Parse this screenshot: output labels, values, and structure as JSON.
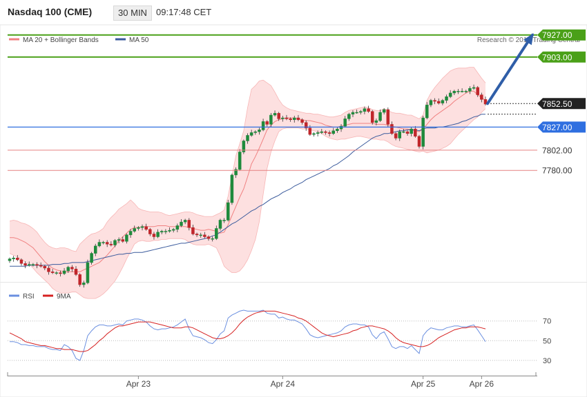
{
  "header": {
    "instrument": "Nasdaq 100 (CME)",
    "interval": "30 MIN",
    "time": "09:17:48 CET"
  },
  "legend": {
    "ma20_label": "MA 20 + Bollinger Bands",
    "ma50_label": "MA 50",
    "copyright": "Research © 2019 Trading Central"
  },
  "rsi_legend": {
    "rsi_label": "RSI",
    "ma_label": "9MA"
  },
  "colors": {
    "ma20": "#f08080",
    "bollinger_fill": "#fde0e0",
    "ma50": "#3a5a9c",
    "bullish": "#1f8a3c",
    "bearish": "#c0262b",
    "green_level": "#4aa018",
    "blue_level": "#2f6fe0",
    "red_level": "#e58080",
    "arrow": "#2f5ea8",
    "rsi": "#6a8fe0",
    "rsi_ma": "#d62020"
  },
  "chart_data": [
    {
      "type": "candlestick",
      "x_labels": [
        "Apr 23",
        "Apr 24",
        "Apr 25",
        "Apr 26"
      ],
      "levels": [
        {
          "value": 7927.0,
          "label": "7927.00",
          "style": "green-line-tag"
        },
        {
          "value": 7903.0,
          "label": "7903.00",
          "style": "green-line-tag"
        },
        {
          "value": 7852.5,
          "label": "7852.50",
          "style": "current-price-tag"
        },
        {
          "value": 7827.0,
          "label": "7827.00",
          "style": "blue-line-tag"
        },
        {
          "value": 7802.0,
          "label": "7802.00",
          "style": "red-line"
        },
        {
          "value": 7780.0,
          "label": "7780.00",
          "style": "red-line"
        }
      ],
      "y_range": [
        7662,
        7935
      ],
      "close": [
        7684,
        7685,
        7683,
        7679,
        7677,
        7678,
        7678,
        7677,
        7676,
        7674,
        7670,
        7669,
        7669,
        7668,
        7671,
        7675,
        7673,
        7667,
        7656,
        7658,
        7680,
        7690,
        7698,
        7702,
        7702,
        7700,
        7699,
        7704,
        7705,
        7703,
        7710,
        7714,
        7717,
        7718,
        7719,
        7716,
        7711,
        7708,
        7713,
        7714,
        7714,
        7715,
        7716,
        7720,
        7724,
        7726,
        7718,
        7711,
        7710,
        7710,
        7708,
        7706,
        7706,
        7717,
        7726,
        7726,
        7745,
        7775,
        7781,
        7800,
        7812,
        7818,
        7821,
        7822,
        7824,
        7833,
        7830,
        7840,
        7842,
        7836,
        7837,
        7836,
        7835,
        7837,
        7835,
        7832,
        7826,
        7819,
        7820,
        7821,
        7822,
        7821,
        7820,
        7823,
        7825,
        7828,
        7836,
        7841,
        7843,
        7843,
        7844,
        7847,
        7844,
        7832,
        7834,
        7843,
        7846,
        7830,
        7820,
        7815,
        7822,
        7822,
        7820,
        7825,
        7817,
        7806,
        7837,
        7851,
        7856,
        7855,
        7853,
        7856,
        7860,
        7864,
        7866,
        7866,
        7866,
        7866,
        7869,
        7870,
        7862,
        7857,
        7852
      ],
      "bollinger_upper": [
        7725,
        7726,
        7725,
        7723,
        7722,
        7720,
        7717,
        7713,
        7707,
        7702,
        7698,
        7696,
        7695,
        7696,
        7696,
        7695,
        7693,
        7692,
        7700,
        7704,
        7708,
        7711,
        7712,
        7714,
        7717,
        7724,
        7729,
        7733,
        7738,
        7741,
        7744,
        7748,
        7744,
        7739,
        7737,
        7736,
        7735,
        7735,
        7735,
        7734,
        7732,
        7731,
        7732,
        7733,
        7734,
        7735,
        7735,
        7734,
        7732,
        7731,
        7730,
        7730,
        7730,
        7732,
        7734,
        7737,
        7752,
        7774,
        7796,
        7809,
        7823,
        7848,
        7868,
        7872,
        7877,
        7878,
        7875,
        7872,
        7865,
        7857,
        7851,
        7848,
        7846,
        7845,
        7844,
        7843,
        7842,
        7842,
        7841,
        7841,
        7840,
        7839,
        7838,
        7838,
        7839,
        7840,
        7843,
        7845,
        7846,
        7847,
        7848,
        7849,
        7848,
        7846,
        7845,
        7845,
        7847,
        7845,
        7843,
        7842,
        7842,
        7841,
        7840,
        7840,
        7838,
        7836,
        7840,
        7856,
        7864,
        7870,
        7875,
        7880,
        7884,
        7888,
        7890,
        7891,
        7891,
        7891,
        7892,
        7892,
        7886,
        7880,
        7875
      ],
      "bollinger_lower": [
        7690,
        7688,
        7686,
        7683,
        7681,
        7678,
        7674,
        7669,
        7665,
        7661,
        7657,
        7652,
        7649,
        7647,
        7647,
        7647,
        7648,
        7648,
        7645,
        7642,
        7641,
        7641,
        7641,
        7643,
        7646,
        7650,
        7655,
        7660,
        7667,
        7675,
        7684,
        7692,
        7700,
        7703,
        7704,
        7703,
        7703,
        7704,
        7704,
        7705,
        7705,
        7706,
        7706,
        7706,
        7706,
        7705,
        7702,
        7700,
        7699,
        7699,
        7699,
        7700,
        7698,
        7696,
        7687,
        7676,
        7672,
        7669,
        7669,
        7671,
        7676,
        7683,
        7693,
        7705,
        7724,
        7754,
        7782,
        7800,
        7812,
        7822,
        7825,
        7826,
        7826,
        7826,
        7826,
        7825,
        7825,
        7824,
        7823,
        7822,
        7820,
        7817,
        7815,
        7814,
        7813,
        7814,
        7814,
        7815,
        7816,
        7817,
        7817,
        7816,
        7815,
        7814,
        7814,
        7813,
        7813,
        7811,
        7808,
        7806,
        7805,
        7804,
        7803,
        7802,
        7801,
        7800,
        7801,
        7799,
        7800,
        7801,
        7802,
        7804,
        7806,
        7809,
        7814,
        7819,
        7823,
        7827,
        7831,
        7835,
        7838,
        7843,
        7847
      ],
      "ma20": [
        7707,
        7707,
        7706,
        7704,
        7702,
        7699,
        7696,
        7691,
        7686,
        7681,
        7677,
        7674,
        7672,
        7671,
        7670,
        7670,
        7670,
        7670,
        7670,
        7672,
        7674,
        7676,
        7678,
        7680,
        7684,
        7688,
        7693,
        7698,
        7704,
        7708,
        7712,
        7716,
        7718,
        7718,
        7719,
        7719,
        7719,
        7719,
        7720,
        7720,
        7720,
        7719,
        7719,
        7719,
        7719,
        7719,
        7718,
        7717,
        7716,
        7715,
        7715,
        7716,
        7715,
        7714,
        7712,
        7713,
        7721,
        7731,
        7741,
        7751,
        7760,
        7773,
        7787,
        7795,
        7804,
        7814,
        7824,
        7829,
        7833,
        7835,
        7836,
        7837,
        7837,
        7837,
        7836,
        7835,
        7834,
        7834,
        7833,
        7832,
        7831,
        7829,
        7828,
        7827,
        7827,
        7828,
        7829,
        7830,
        7831,
        7831,
        7831,
        7831,
        7831,
        7831,
        7830,
        7830,
        7830,
        7829,
        7828,
        7827,
        7826,
        7825,
        7825,
        7824,
        7823,
        7822,
        7825,
        7830,
        7835,
        7839,
        7842,
        7845,
        7848,
        7851,
        7855,
        7858,
        7861,
        7864,
        7866,
        7866,
        7862,
        7859,
        7856
      ],
      "ma50": [
        7676,
        7676,
        7676,
        7676,
        7676,
        7677,
        7677,
        7677,
        7677,
        7677,
        7677,
        7678,
        7678,
        7678,
        7679,
        7679,
        7680,
        7680,
        7680,
        7680,
        7681,
        7682,
        7683,
        7684,
        7685,
        7686,
        7687,
        7688,
        7689,
        7689,
        7690,
        7690,
        7691,
        7691,
        7691,
        7692,
        7693,
        7694,
        7695,
        7696,
        7697,
        7698,
        7699,
        7700,
        7701,
        7701,
        7702,
        7703,
        7704,
        7705,
        7706,
        7707,
        7709,
        7710,
        7713,
        7716,
        7719,
        7722,
        7724,
        7727,
        7730,
        7733,
        7736,
        7738,
        7741,
        7743,
        7746,
        7749,
        7751,
        7753,
        7756,
        7758,
        7760,
        7763,
        7765,
        7767,
        7770,
        7772,
        7774,
        7776,
        7778,
        7780,
        7782,
        7785,
        7787,
        7790,
        7793,
        7796,
        7800,
        7803,
        7806,
        7809,
        7812,
        7815,
        7817,
        7818,
        7820,
        7820,
        7821,
        7822,
        7823,
        7823,
        7824,
        7824,
        7824,
        7823,
        7825,
        7826,
        7826,
        7826,
        7827,
        7827,
        7828,
        7829,
        7830,
        7831,
        7833,
        7834,
        7836,
        7838,
        7839,
        7841,
        7841
      ],
      "arrow": {
        "from": 7852.5,
        "to": 7927
      }
    },
    {
      "type": "line",
      "title": "RSI",
      "y_ticks": [
        70,
        50,
        30
      ],
      "ylim": [
        18,
        88
      ],
      "series": [
        {
          "name": "RSI",
          "values": [
            49,
            49,
            48,
            46,
            46,
            45,
            45,
            44,
            44,
            44,
            42,
            41,
            41,
            40,
            46,
            44,
            40,
            32,
            30,
            40,
            55,
            60,
            64,
            66,
            66,
            65,
            65,
            66,
            67,
            66,
            70,
            71,
            72,
            72,
            71,
            69,
            65,
            62,
            61,
            62,
            62,
            63,
            64,
            66,
            69,
            72,
            62,
            55,
            54,
            53,
            51,
            48,
            47,
            51,
            57,
            60,
            73,
            76,
            78,
            80,
            81,
            80,
            80,
            80,
            80,
            81,
            78,
            77,
            77,
            73,
            74,
            72,
            71,
            71,
            69,
            67,
            62,
            56,
            54,
            53,
            54,
            55,
            56,
            57,
            58,
            60,
            64,
            66,
            67,
            67,
            66,
            66,
            64,
            56,
            52,
            57,
            59,
            52,
            44,
            42,
            44,
            44,
            42,
            45,
            41,
            37,
            55,
            60,
            63,
            62,
            61,
            61,
            63,
            64,
            65,
            65,
            64,
            64,
            65,
            66,
            61,
            55,
            49
          ]
        },
        {
          "name": "9MA",
          "values": [
            58,
            56,
            54,
            52,
            49,
            48,
            47,
            46,
            45,
            45,
            44,
            43,
            42,
            42,
            41,
            41,
            41,
            40,
            39,
            39,
            40,
            43,
            46,
            50,
            53,
            57,
            60,
            63,
            65,
            65,
            66,
            67,
            68,
            69,
            69,
            69,
            69,
            68,
            67,
            66,
            65,
            64,
            63,
            63,
            63,
            64,
            64,
            63,
            61,
            59,
            57,
            55,
            53,
            52,
            52,
            53,
            55,
            58,
            62,
            67,
            71,
            74,
            76,
            78,
            79,
            80,
            80,
            80,
            80,
            79,
            78,
            77,
            76,
            75,
            73,
            72,
            70,
            67,
            64,
            61,
            58,
            56,
            55,
            54,
            55,
            56,
            57,
            58,
            60,
            61,
            63,
            64,
            65,
            65,
            64,
            63,
            62,
            60,
            57,
            53,
            50,
            48,
            47,
            46,
            45,
            44,
            44,
            45,
            47,
            50,
            53,
            55,
            57,
            59,
            61,
            62,
            63,
            63,
            64,
            64,
            64,
            63,
            62
          ]
        }
      ]
    }
  ]
}
